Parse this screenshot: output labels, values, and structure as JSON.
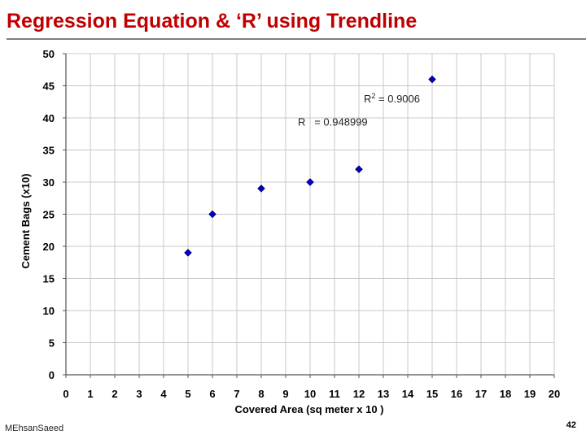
{
  "slide": {
    "title": "Regression Equation & ‘R’ using Trendline",
    "author": "MEhsanSaeed",
    "page_number": "42"
  },
  "chart_data": {
    "type": "scatter",
    "title": "",
    "xlabel": "Covered Area (sq meter x 10 )",
    "ylabel": "Cement Bags (x10)",
    "xlim": [
      0,
      20
    ],
    "ylim": [
      0,
      50
    ],
    "x_ticks": [
      0,
      1,
      2,
      3,
      4,
      5,
      6,
      7,
      8,
      9,
      10,
      11,
      12,
      13,
      14,
      15,
      16,
      17,
      18,
      19,
      20
    ],
    "y_ticks": [
      0,
      5,
      10,
      15,
      20,
      25,
      30,
      35,
      40,
      45,
      50
    ],
    "grid": true,
    "legend": "none",
    "marker_color": "#0000cc",
    "annotations": [
      {
        "prefix": "R",
        "superscript": "2",
        "text": " = 0.9006",
        "x": 12.2,
        "y": 42.4
      },
      {
        "prefix": "R",
        "superscript": "",
        "text": "   = 0.948999",
        "x": 9.5,
        "y": 38.8
      }
    ],
    "series": [
      {
        "points": [
          {
            "x": 5,
            "y": 19
          },
          {
            "x": 6,
            "y": 25
          },
          {
            "x": 8,
            "y": 29
          },
          {
            "x": 10,
            "y": 30
          },
          {
            "x": 12,
            "y": 32
          },
          {
            "x": 15,
            "y": 46
          }
        ]
      }
    ]
  }
}
